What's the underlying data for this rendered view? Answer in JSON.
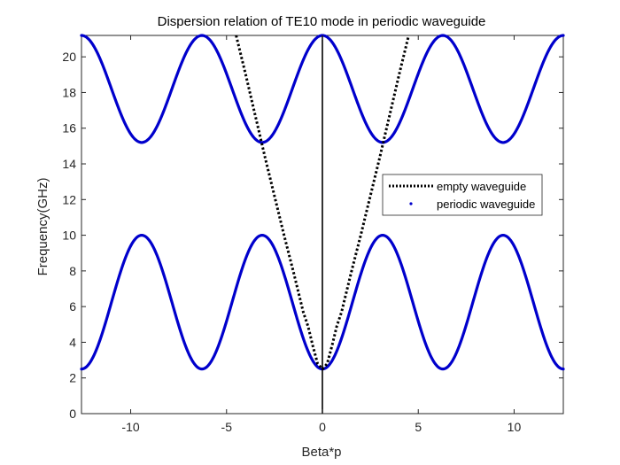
{
  "chart_data": {
    "type": "line",
    "title": "Dispersion relation of TE10 mode in periodic waveguide",
    "xlabel": "Beta*p",
    "ylabel": "Frequency(GHz)",
    "xlim": [
      -12.566,
      12.566
    ],
    "ylim": [
      0,
      21.2
    ],
    "xticks": [
      -10,
      -5,
      0,
      5,
      10
    ],
    "xtick_labels": [
      "-10",
      "-5",
      "0",
      "5",
      "10"
    ],
    "yticks": [
      0,
      2,
      4,
      6,
      8,
      10,
      12,
      14,
      16,
      18,
      20
    ],
    "ytick_labels": [
      "0",
      "2",
      "4",
      "6",
      "8",
      "10",
      "12",
      "14",
      "16",
      "18",
      "20"
    ],
    "grid": false,
    "legend_position": "right",
    "series": [
      {
        "name": "empty waveguide",
        "style": "dotted",
        "color": "#000000",
        "cutoff_ghz": 2.5,
        "x": [
          -4.5,
          -4.0,
          -3.5,
          -3.0,
          -2.5,
          -2.0,
          -1.5,
          -1.0,
          -0.75,
          -0.5,
          -0.25,
          0,
          0.25,
          0.5,
          0.75,
          1.0,
          1.5,
          2.0,
          2.5,
          3.0,
          3.5,
          4.0,
          4.5
        ],
        "y": [
          21.2,
          19.0,
          16.7,
          14.4,
          12.2,
          10.0,
          7.9,
          5.7,
          4.9,
          3.8,
          2.8,
          2.5,
          2.8,
          3.8,
          4.9,
          5.7,
          7.9,
          10.0,
          12.2,
          14.4,
          16.7,
          19.0,
          21.2
        ]
      },
      {
        "name": "periodic waveguide",
        "style": "dots",
        "color": "#0000cc",
        "bands": [
          {
            "x": [
              -12.566,
              -11.0,
              -9.425,
              -7.85,
              -6.283,
              -4.71,
              -3.142,
              -1.57,
              0,
              1.57,
              3.142,
              4.71,
              6.283,
              7.85,
              9.425,
              11.0,
              12.566
            ],
            "y": [
              2.5,
              6.25,
              10.0,
              6.25,
              2.5,
              6.25,
              10.0,
              6.25,
              2.5,
              6.25,
              10.0,
              6.25,
              2.5,
              6.25,
              10.0,
              6.25,
              2.5
            ]
          },
          {
            "x": [
              -12.566,
              -11.0,
              -9.425,
              -7.85,
              -6.283,
              -4.71,
              -3.142,
              -1.57,
              0,
              1.57,
              3.142,
              4.71,
              6.283,
              7.85,
              9.425,
              11.0,
              12.566
            ],
            "y": [
              21.2,
              18.2,
              15.2,
              18.2,
              21.2,
              18.2,
              15.2,
              18.2,
              21.2,
              18.2,
              15.2,
              18.2,
              21.2,
              18.2,
              15.2,
              18.2,
              21.2
            ]
          }
        ]
      }
    ],
    "annotations": [
      {
        "type": "vertical-line",
        "x": 0,
        "color": "#000000"
      }
    ]
  }
}
